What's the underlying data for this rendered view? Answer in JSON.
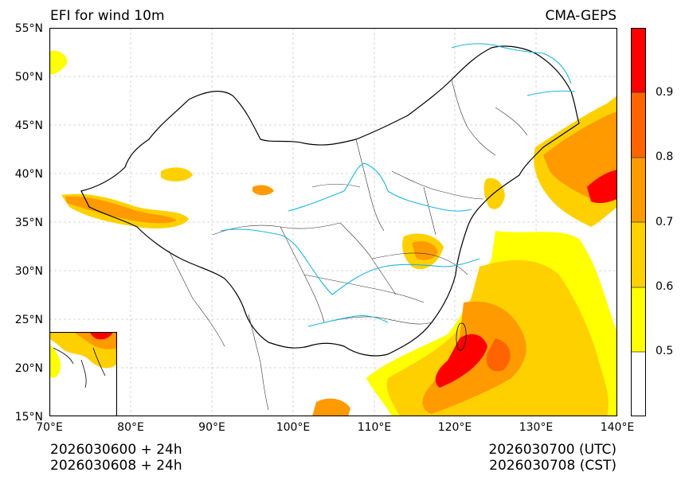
{
  "title": "EFI for wind 10m",
  "model": "CMA-GEPS",
  "lat_labels": [
    "55°N",
    "50°N",
    "45°N",
    "40°N",
    "35°N",
    "30°N",
    "25°N",
    "20°N",
    "15°N"
  ],
  "lon_labels": [
    "70°E",
    "80°E",
    "90°E",
    "100°E",
    "110°E",
    "120°E",
    "130°E",
    "140°E"
  ],
  "colorbar": {
    "labels": [
      "0.5",
      "0.6",
      "0.7",
      "0.8",
      "0.9"
    ],
    "colors": [
      "#ffffff",
      "#ffff00",
      "#ffd000",
      "#ff9a00",
      "#ff6400",
      "#ff0000"
    ]
  },
  "footer": {
    "init_utc": "2026030600 + 24h",
    "init_cst": "2026030608 + 24h",
    "valid_utc": "2026030700 (UTC)",
    "valid_cst": "2026030708 (CST)"
  },
  "colors": {
    "boundary": "#000000",
    "river": "#1ab6e0",
    "grid": "#cccccc",
    "yellow": "#ffff00",
    "gold": "#ffd000",
    "orange": "#ff9a00",
    "darkorange": "#ff6400",
    "red": "#ff0000"
  }
}
